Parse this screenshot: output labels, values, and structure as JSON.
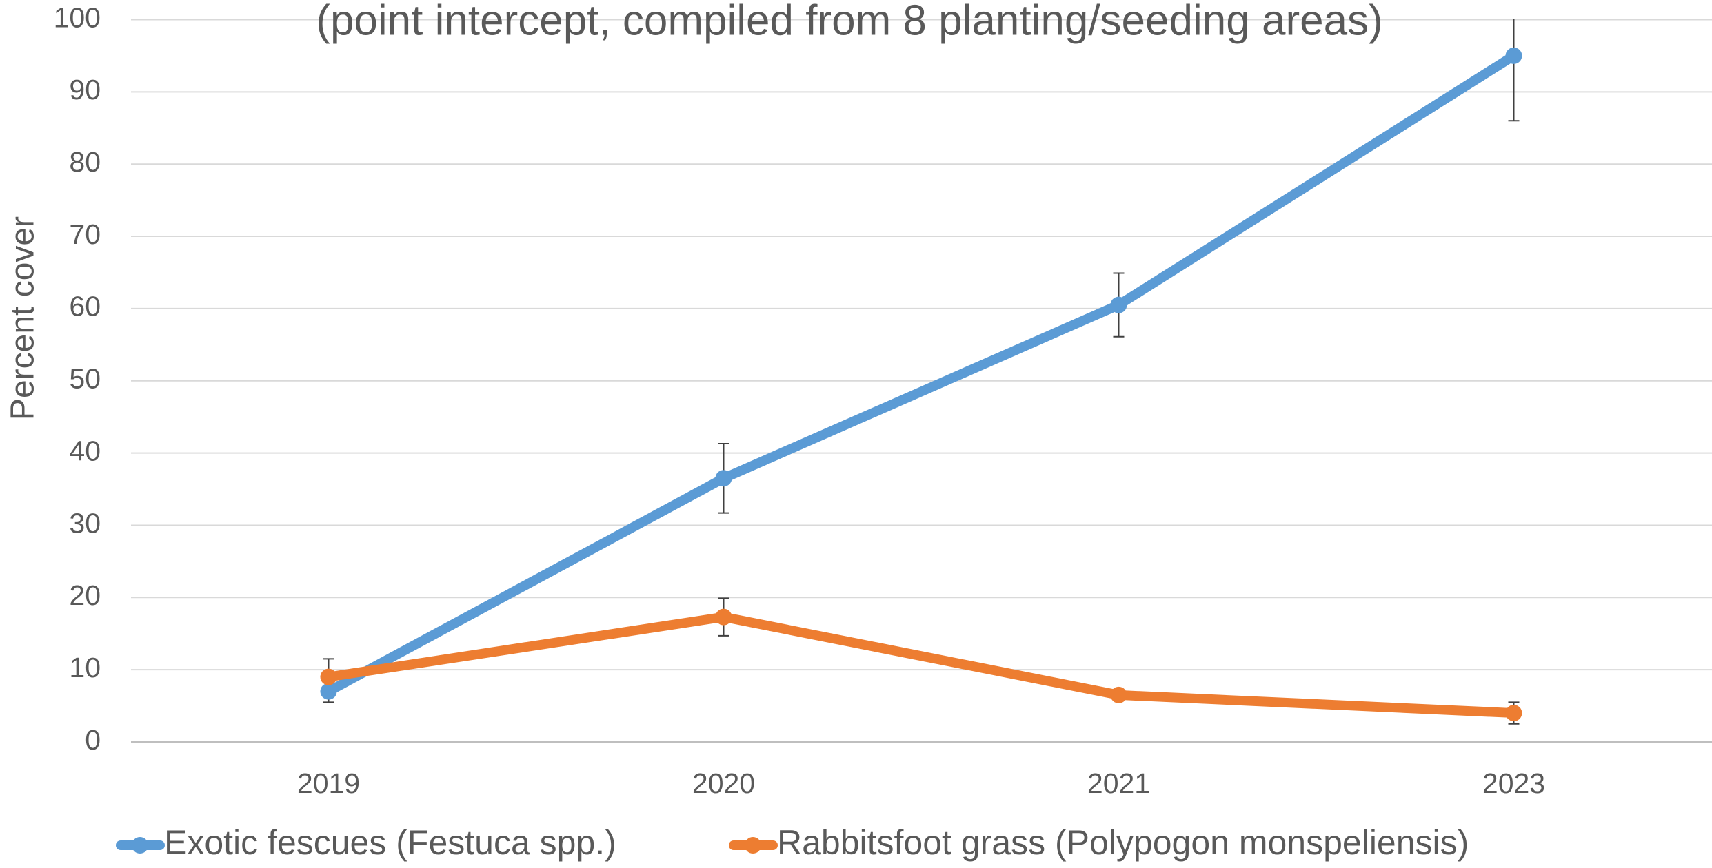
{
  "chart_data": {
    "type": "line",
    "subtitle": "(point intercept, compiled from 8 planting/seeding areas)",
    "ylabel": "Percent cover",
    "categories": [
      "2019",
      "2020",
      "2021",
      "2023"
    ],
    "series": [
      {
        "name": "Exotic fescues (Festuca spp.)",
        "color": "#5b9bd5",
        "values": [
          7,
          36.5,
          60.5,
          95
        ],
        "errors": [
          1.5,
          4.8,
          4.4,
          9
        ]
      },
      {
        "name": "Rabbitsfoot grass (Polypogon monspeliensis)",
        "color": "#ed7d31",
        "values": [
          9,
          17.3,
          6.5,
          4
        ],
        "errors": [
          2.5,
          2.6,
          0.5,
          1.5
        ]
      }
    ],
    "ylim": [
      0,
      100
    ],
    "yticks": [
      0,
      10,
      20,
      30,
      40,
      50,
      60,
      70,
      80,
      90,
      100
    ],
    "grid": true,
    "legend": "bottom"
  }
}
